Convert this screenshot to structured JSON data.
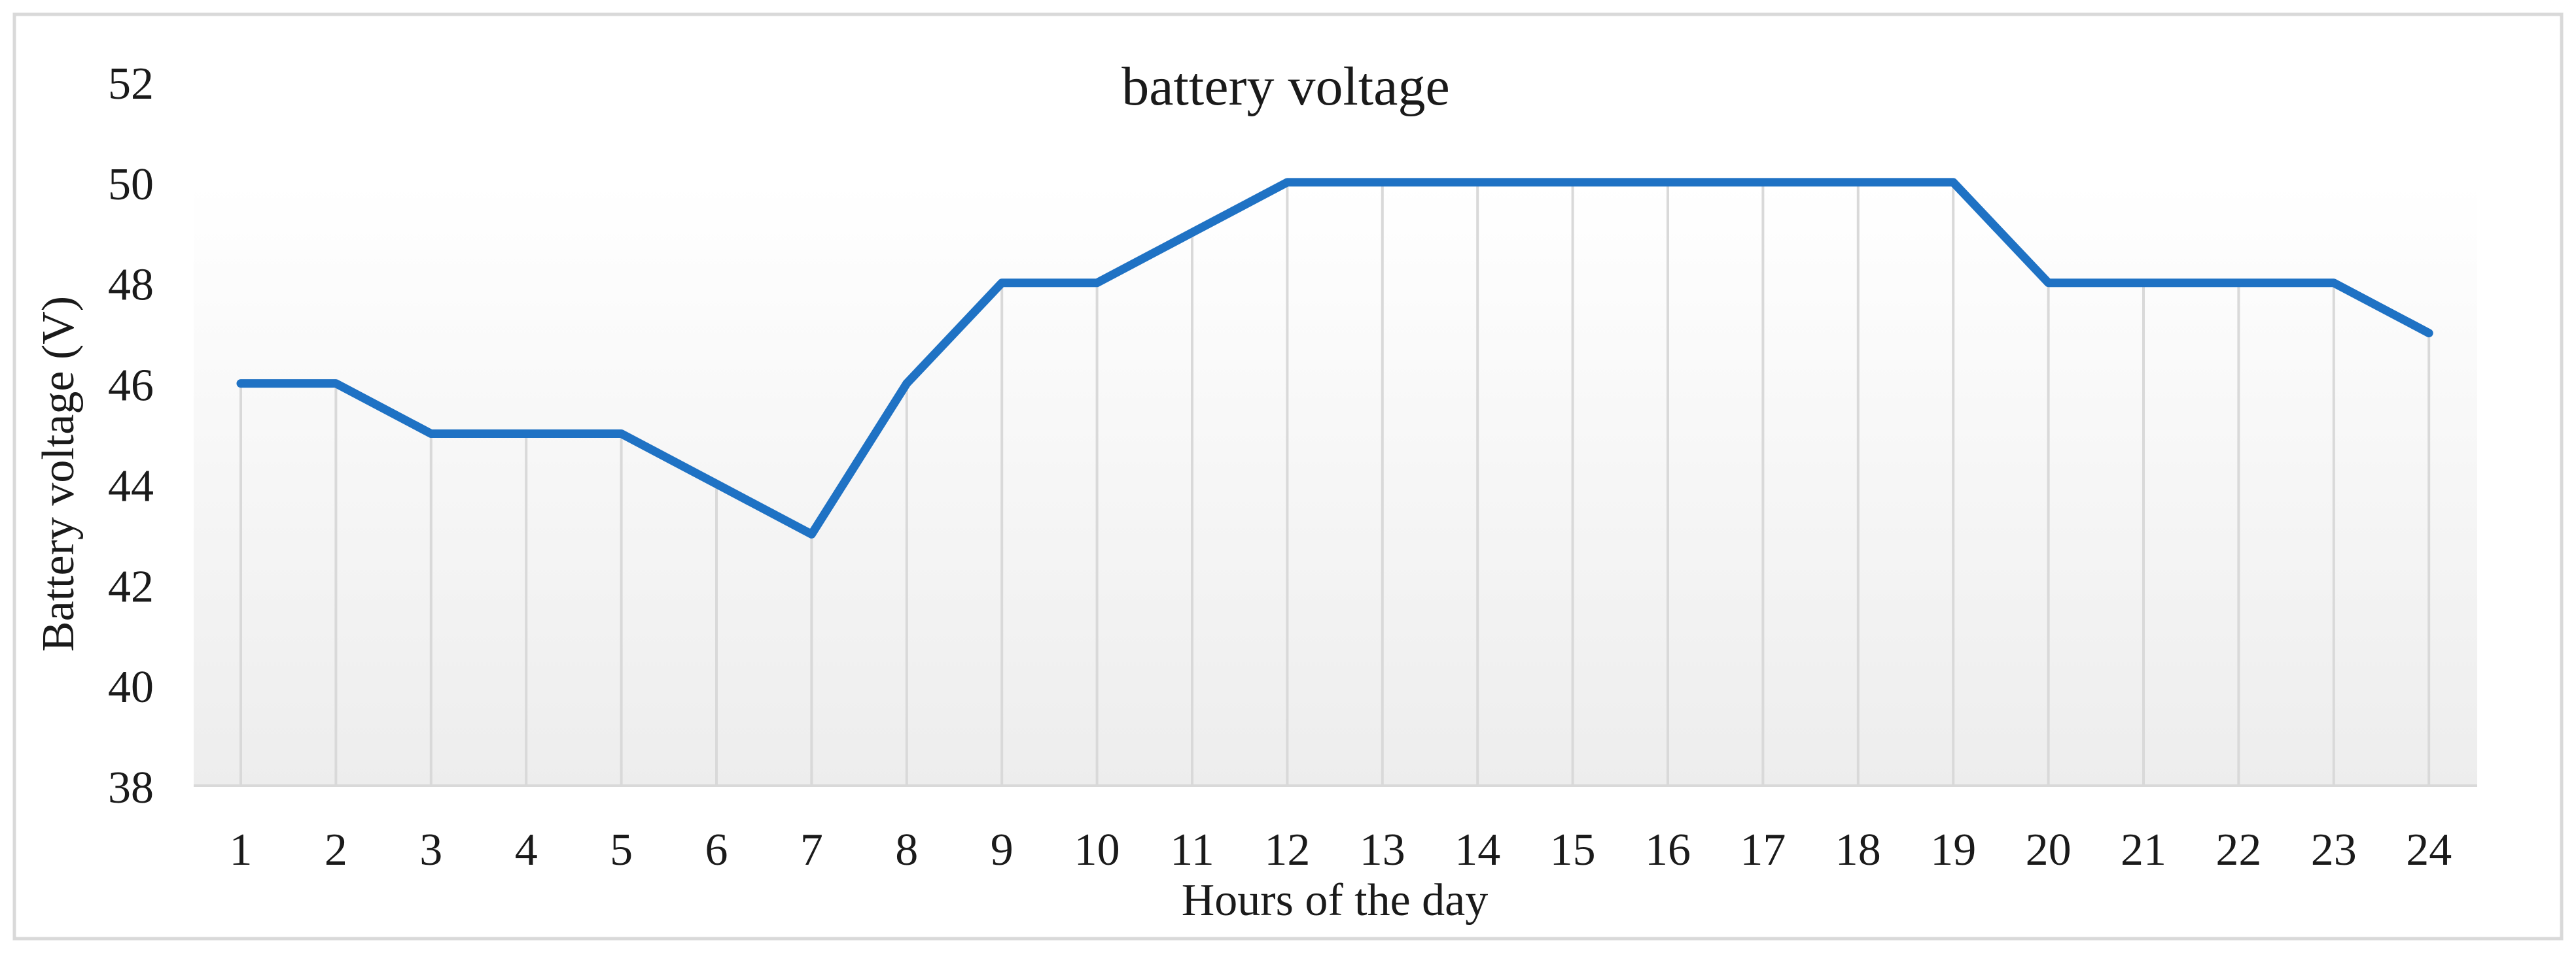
{
  "chart_data": {
    "type": "line",
    "title": "battery voltage",
    "xlabel": "Hours of the day",
    "ylabel": "Battery voltage (V)",
    "ylim": [
      38,
      52
    ],
    "yticks": [
      38,
      40,
      42,
      44,
      46,
      48,
      50,
      52
    ],
    "categories": [
      "1",
      "2",
      "3",
      "4",
      "5",
      "6",
      "7",
      "8",
      "9",
      "10",
      "11",
      "12",
      "13",
      "14",
      "15",
      "16",
      "17",
      "18",
      "19",
      "20",
      "21",
      "22",
      "23",
      "24"
    ],
    "series": [
      {
        "values": [
          46,
          46,
          45,
          45,
          45,
          44,
          43,
          46,
          48,
          48,
          49,
          50,
          50,
          50,
          50,
          50,
          50,
          50,
          50,
          48,
          48,
          48,
          48,
          47
        ]
      }
    ],
    "grid": "vertical",
    "legend": "none",
    "colors": {
      "line": "#1f72c4",
      "grid": "#d9d9d9",
      "border": "#d9d9d9"
    }
  }
}
